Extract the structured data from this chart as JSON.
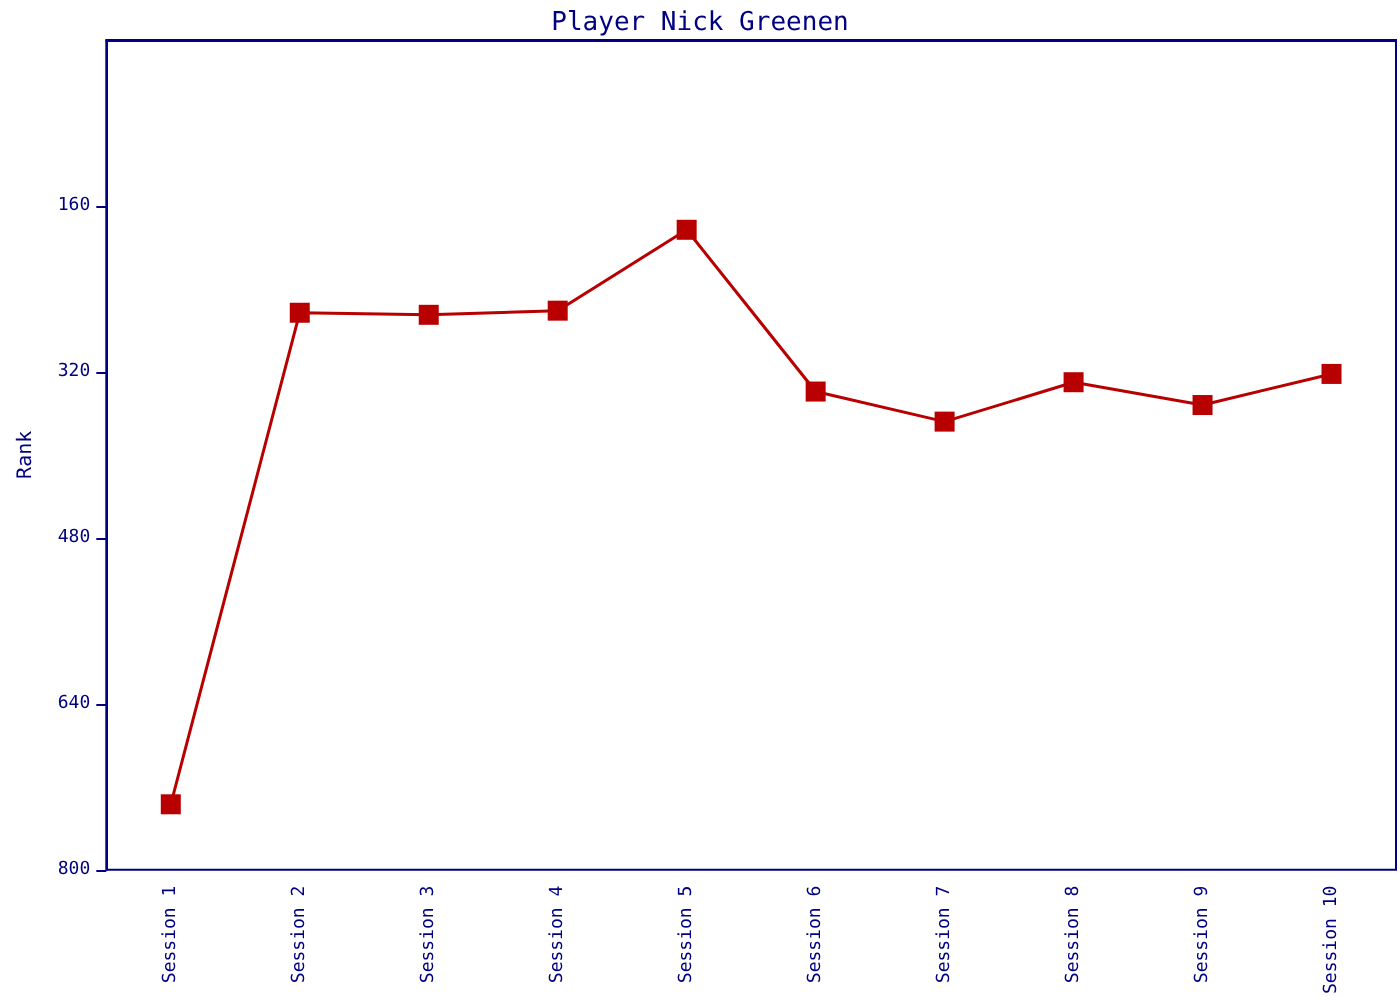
{
  "chart_data": {
    "type": "line",
    "title": "Player Nick Greenen",
    "ylabel": "Rank",
    "categories": [
      "Session 1",
      "Session 2",
      "Session 3",
      "Session 4",
      "Session 5",
      "Session 6",
      "Session 7",
      "Session 8",
      "Session 9",
      "Session 10"
    ],
    "series": [
      {
        "color": "#b80000",
        "values": [
          737,
          263,
          265,
          261,
          183,
          339,
          368,
          330,
          352,
          322
        ]
      }
    ],
    "ylim": [
      800,
      0
    ],
    "yticks": [
      160,
      320,
      480,
      640,
      800
    ],
    "grid": false,
    "legend": false,
    "marker": "square",
    "line_style": "solid"
  }
}
